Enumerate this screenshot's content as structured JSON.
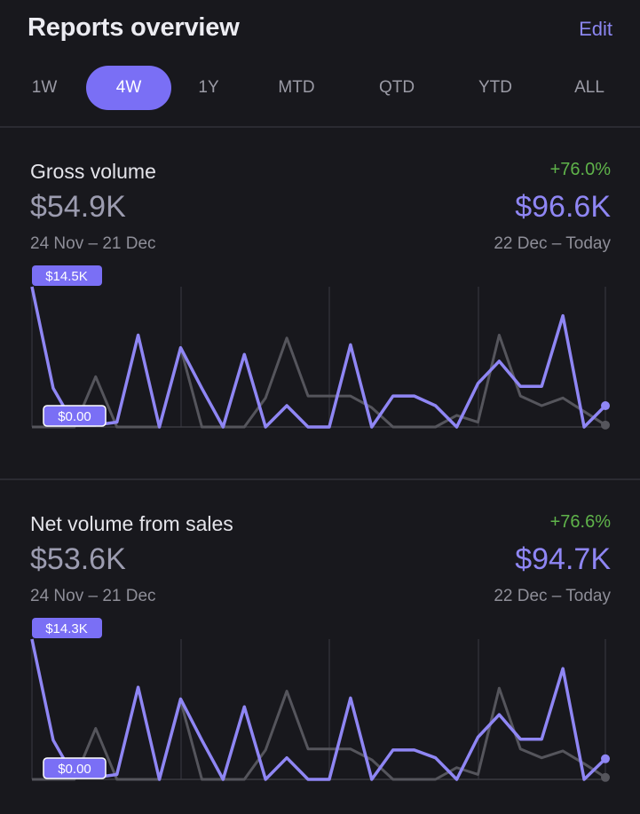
{
  "header": {
    "title": "Reports overview",
    "edit_label": "Edit"
  },
  "ranges": [
    {
      "label": "1W",
      "active": false
    },
    {
      "label": "4W",
      "active": true
    },
    {
      "label": "1Y",
      "active": false
    },
    {
      "label": "MTD",
      "active": false
    },
    {
      "label": "QTD",
      "active": false
    },
    {
      "label": "YTD",
      "active": false
    },
    {
      "label": "ALL",
      "active": false
    }
  ],
  "colors": {
    "current": "#8f86f4",
    "previous": "#55555c",
    "positive": "#5fb34a",
    "accent": "#7a6ff5"
  },
  "metrics": [
    {
      "name": "Gross volume",
      "change": "+76.0%",
      "previous_value": "$54.9K",
      "previous_range": "24 Nov – 21 Dec",
      "current_value": "$96.6K",
      "current_range": "22 Dec – Today",
      "max_label": "$14.5K",
      "min_label": "$0.00"
    },
    {
      "name": "Net volume from sales",
      "change": "+76.6%",
      "previous_value": "$53.6K",
      "previous_range": "24 Nov – 21 Dec",
      "current_value": "$94.7K",
      "current_range": "22 Dec – Today",
      "max_label": "$14.3K",
      "min_label": "$0.00"
    }
  ],
  "chart_data": [
    {
      "type": "line",
      "ylim": [
        0,
        14.5
      ],
      "series": [
        {
          "values": [
            14.5,
            4.0,
            0.2,
            0.2,
            0.5,
            9.5,
            0.0,
            8.2,
            4.0,
            0.0,
            7.5,
            0.0,
            2.2,
            0.0,
            0.0,
            8.5,
            0.0,
            3.2,
            3.2,
            2.2,
            0.0,
            4.5,
            6.8,
            4.2,
            4.2,
            11.5,
            0.0,
            2.2
          ]
        },
        {
          "values": [
            0.0,
            0.0,
            0.0,
            5.2,
            0.0,
            0.0,
            0.0,
            8.2,
            0.0,
            0.0,
            0.0,
            3.0,
            9.2,
            3.2,
            3.2,
            3.2,
            2.0,
            0.0,
            0.0,
            0.0,
            1.2,
            0.5,
            9.5,
            3.2,
            2.2,
            3.0,
            1.6,
            0.2
          ]
        }
      ]
    },
    {
      "type": "line",
      "ylim": [
        0,
        14.3
      ],
      "series": [
        {
          "values": [
            14.3,
            4.0,
            0.2,
            0.2,
            0.5,
            9.4,
            0.0,
            8.2,
            4.0,
            0.0,
            7.4,
            0.0,
            2.2,
            0.0,
            0.0,
            8.3,
            0.0,
            3.0,
            3.0,
            2.2,
            0.0,
            4.3,
            6.6,
            4.1,
            4.1,
            11.3,
            0.0,
            2.1
          ]
        },
        {
          "values": [
            0.0,
            0.0,
            0.0,
            5.2,
            0.0,
            0.0,
            0.0,
            8.0,
            0.0,
            0.0,
            0.0,
            3.0,
            9.0,
            3.1,
            3.1,
            3.1,
            2.0,
            0.0,
            0.0,
            0.0,
            1.2,
            0.5,
            9.3,
            3.1,
            2.2,
            2.9,
            1.6,
            0.2
          ]
        }
      ]
    }
  ]
}
